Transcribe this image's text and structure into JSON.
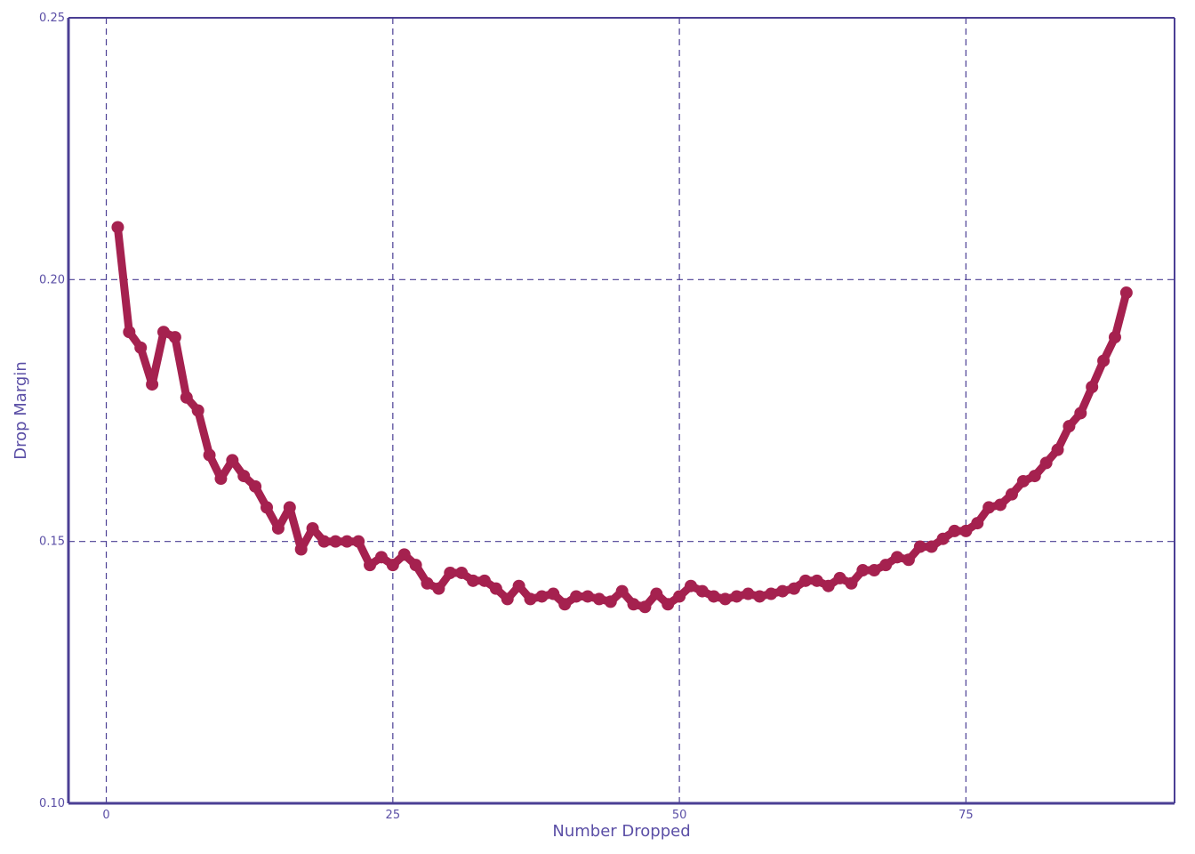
{
  "colors": {
    "axis": "#4b3f94",
    "grid": "#4b3f94",
    "line": "#a5214f",
    "text": "#5b4fa6",
    "background": "#ffffff"
  },
  "chart_data": {
    "type": "line",
    "title": "",
    "xlabel": "Number Dropped",
    "ylabel": "Drop Margin",
    "xlim": [
      -3.3,
      93.2
    ],
    "ylim": [
      0.1,
      0.25
    ],
    "xticks": [
      0,
      25,
      50,
      75
    ],
    "xtick_labels": [
      "0",
      "25",
      "50",
      "75"
    ],
    "yticks": [
      0.1,
      0.15,
      0.2,
      0.25
    ],
    "ytick_labels": [
      "0.10",
      "0.15",
      "0.20",
      "0.25"
    ],
    "grid": true,
    "legend": "none",
    "marker": "circle",
    "series": [
      {
        "x": [
          1,
          2,
          3,
          4,
          5,
          6,
          7,
          8,
          9,
          10,
          11,
          12,
          13,
          14,
          15,
          16,
          17,
          18,
          19,
          20,
          21,
          22,
          23,
          24,
          25,
          26,
          27,
          28,
          29,
          30,
          31,
          32,
          33,
          34,
          35,
          36,
          37,
          38,
          39,
          40,
          41,
          42,
          43,
          44,
          45,
          46,
          47,
          48,
          49,
          50,
          51,
          52,
          53,
          54,
          55,
          56,
          57,
          58,
          59,
          60,
          61,
          62,
          63,
          64,
          65,
          66,
          67,
          68,
          69,
          70,
          71,
          72,
          73,
          74,
          75,
          76,
          77,
          78,
          79,
          80,
          81,
          82,
          83,
          84,
          85,
          86,
          87,
          88,
          89
        ],
        "values": [
          0.21,
          0.19,
          0.187,
          0.18,
          0.19,
          0.189,
          0.1775,
          0.175,
          0.1665,
          0.162,
          0.1655,
          0.1625,
          0.1605,
          0.1565,
          0.1525,
          0.1565,
          0.1485,
          0.1525,
          0.15,
          0.15,
          0.15,
          0.15,
          0.1455,
          0.147,
          0.1455,
          0.1475,
          0.1455,
          0.142,
          0.141,
          0.144,
          0.144,
          0.1425,
          0.1425,
          0.141,
          0.139,
          0.1415,
          0.139,
          0.1395,
          0.14,
          0.138,
          0.1395,
          0.1395,
          0.139,
          0.1385,
          0.1405,
          0.138,
          0.1375,
          0.14,
          0.138,
          0.1395,
          0.1415,
          0.1405,
          0.1395,
          0.139,
          0.1395,
          0.14,
          0.1395,
          0.14,
          0.1405,
          0.141,
          0.1425,
          0.1425,
          0.1415,
          0.143,
          0.142,
          0.1445,
          0.1445,
          0.1455,
          0.147,
          0.1465,
          0.149,
          0.149,
          0.1505,
          0.152,
          0.152,
          0.1535,
          0.1565,
          0.157,
          0.159,
          0.1615,
          0.1625,
          0.165,
          0.1675,
          0.172,
          0.1745,
          0.1795,
          0.1845,
          0.189,
          0.1975
        ]
      }
    ]
  }
}
